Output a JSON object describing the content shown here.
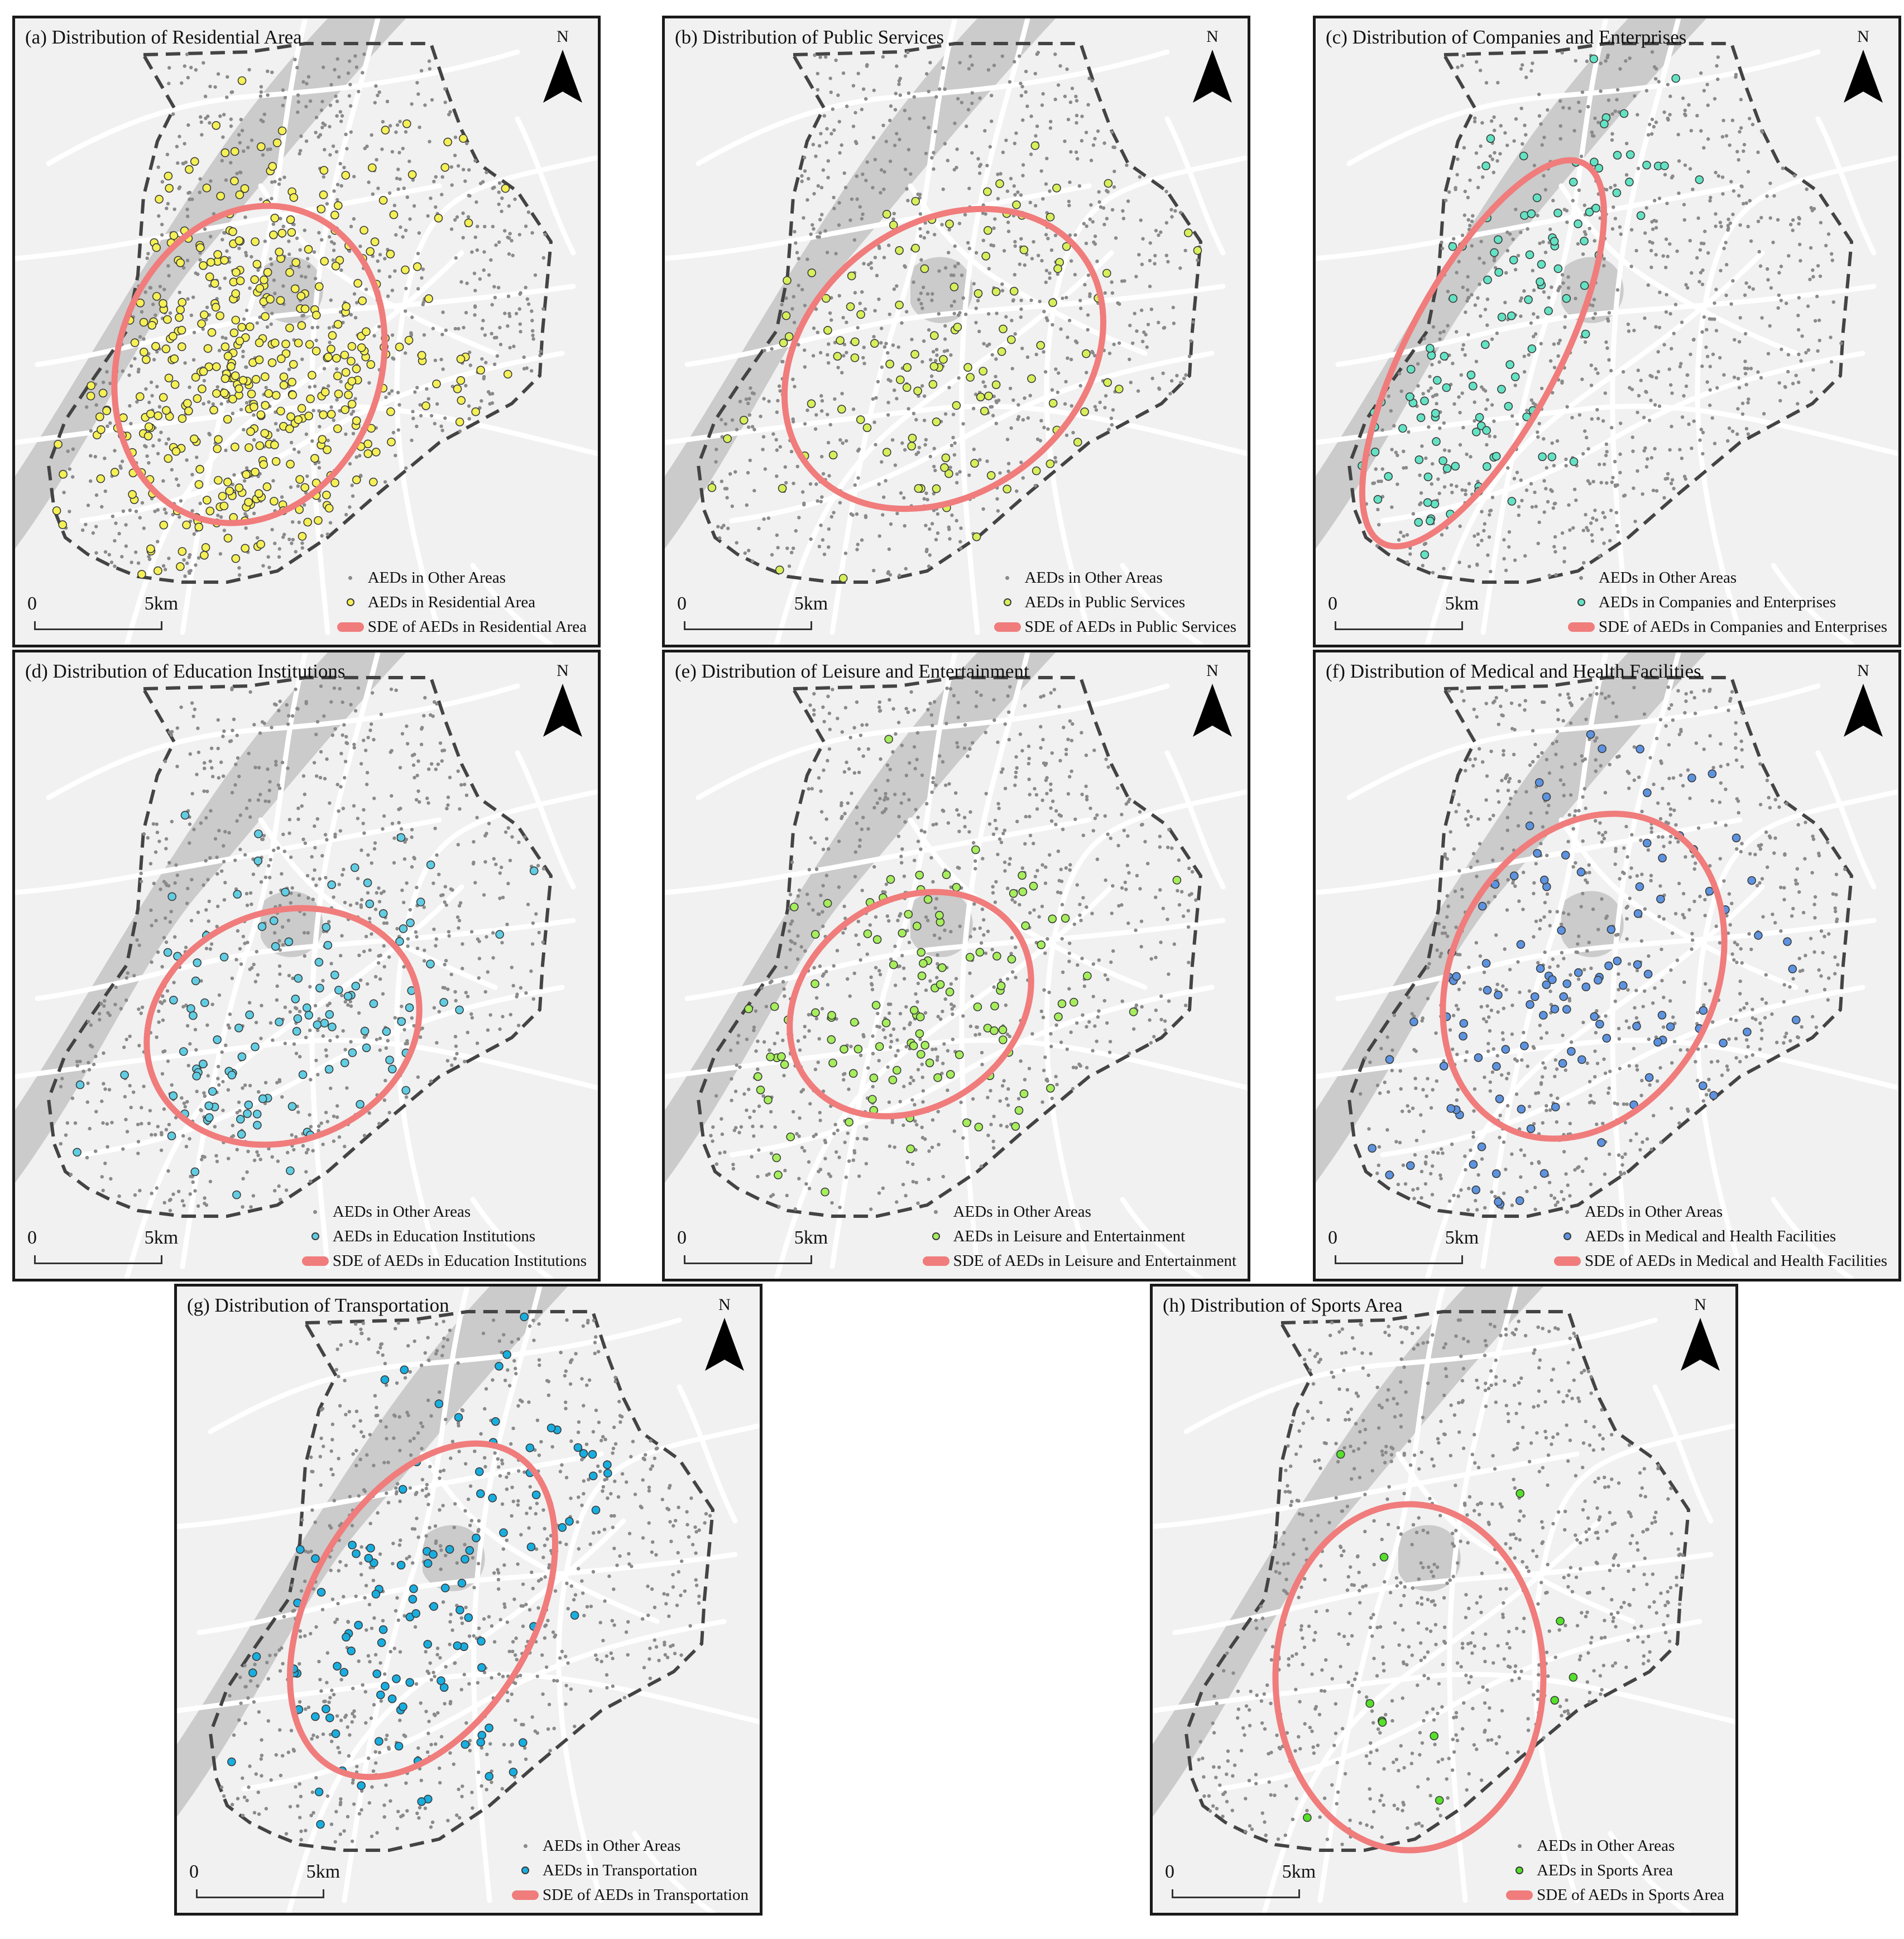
{
  "common": {
    "north_label": "N",
    "scale_zero": "0",
    "scale_label": "5km",
    "other_label": "AEDs in Other Areas",
    "north_icon": "north-arrow-icon",
    "colors": {
      "background": "#f1f1f1",
      "water": "#cbcbcb",
      "roads": "#ffffff",
      "boundary": "#444444",
      "other_points": "#8a8a8a",
      "sde": "#f07c7c"
    }
  },
  "panels": [
    {
      "id": "a",
      "title": "(a) Distribution of Residential Area",
      "category_label": "AEDs in Residential Area",
      "sde_label": "SDE of AEDs in Residential Area",
      "color": "#f5f055",
      "count": "dense"
    },
    {
      "id": "b",
      "title": "(b) Distribution of Public Services",
      "category_label": "AEDs in Public Services",
      "sde_label": "SDE of AEDs in Public Services",
      "color": "#d8ef5a",
      "count": "moderate"
    },
    {
      "id": "c",
      "title": "(c) Distribution of Companies and Enterprises",
      "category_label": "AEDs in Companies and Enterprises",
      "sde_label": "SDE of AEDs in Companies and Enterprises",
      "color": "#63e3c4",
      "count": "moderate"
    },
    {
      "id": "d",
      "title": "(d) Distribution of Education Institutions",
      "category_label": "AEDs in Education Institutions",
      "sde_label": "SDE of AEDs in Education Institutions",
      "color": "#61cde3",
      "count": "moderate"
    },
    {
      "id": "e",
      "title": "(e) Distribution of Leisure and Entertainment",
      "category_label": "AEDs in Leisure and Entertainment",
      "sde_label": "SDE of AEDs in Leisure and Entertainment",
      "color": "#a6ee5c",
      "count": "moderate"
    },
    {
      "id": "f",
      "title": "(f) Distribution of Medical and Health Facilities",
      "category_label": "AEDs in Medical and Health Facilities",
      "sde_label": "SDE of AEDs in Medical and Health Facilities",
      "color": "#5d93e0",
      "count": "moderate"
    },
    {
      "id": "g",
      "title": "(g) Distribution of Transportation",
      "category_label": "AEDs in Transportation",
      "sde_label": "SDE of AEDs in Transportation",
      "color": "#19aee0",
      "count": "moderate"
    },
    {
      "id": "h",
      "title": "(h) Distribution of Sports Area",
      "category_label": "AEDs in Sports Area",
      "sde_label": "SDE of AEDs in Sports Area",
      "color": "#55e02a",
      "count": "sparse"
    }
  ]
}
